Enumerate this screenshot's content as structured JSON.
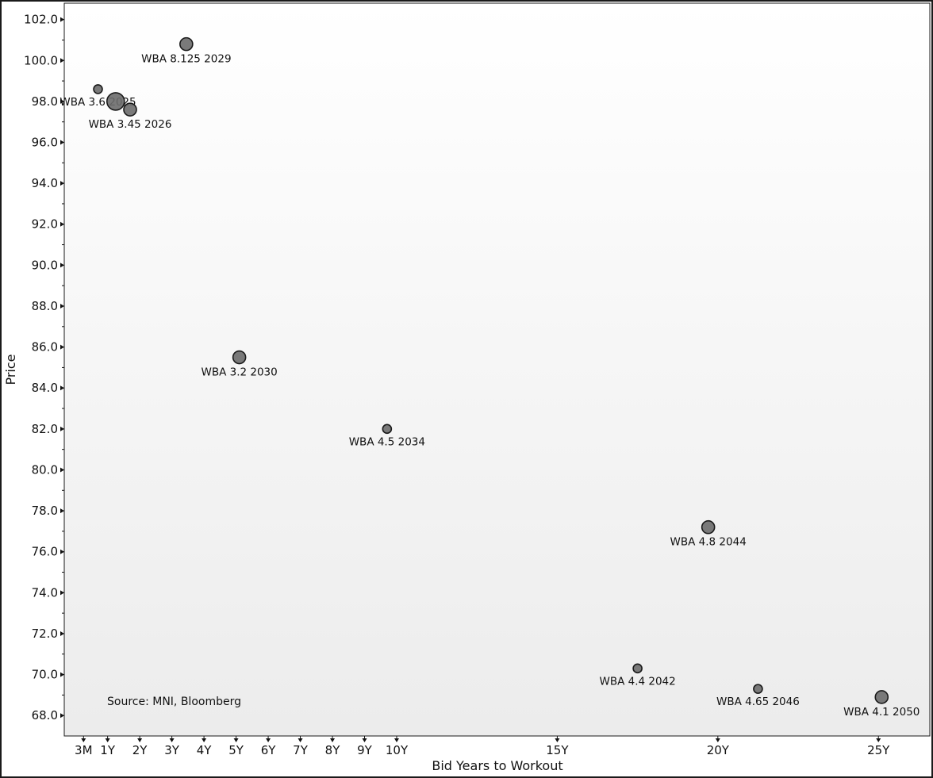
{
  "chart_data": {
    "type": "scatter",
    "title": "",
    "xlabel": "Bid Years to Workout",
    "ylabel": "Price",
    "source": "Source: MNI, Bloomberg",
    "xlim": [
      -0.35,
      26.6
    ],
    "ylim": [
      67.0,
      102.8
    ],
    "x_ticks": [
      {
        "value": 0.25,
        "label": "3M"
      },
      {
        "value": 1,
        "label": "1Y"
      },
      {
        "value": 2,
        "label": "2Y"
      },
      {
        "value": 3,
        "label": "3Y"
      },
      {
        "value": 4,
        "label": "4Y"
      },
      {
        "value": 5,
        "label": "5Y"
      },
      {
        "value": 6,
        "label": "6Y"
      },
      {
        "value": 7,
        "label": "7Y"
      },
      {
        "value": 8,
        "label": "8Y"
      },
      {
        "value": 9,
        "label": "9Y"
      },
      {
        "value": 10,
        "label": "10Y"
      },
      {
        "value": 15,
        "label": "15Y"
      },
      {
        "value": 20,
        "label": "20Y"
      },
      {
        "value": 25,
        "label": "25Y"
      }
    ],
    "y_ticks": [
      "68.0",
      "70.0",
      "72.0",
      "74.0",
      "76.0",
      "78.0",
      "80.0",
      "82.0",
      "84.0",
      "86.0",
      "88.0",
      "90.0",
      "92.0",
      "94.0",
      "96.0",
      "98.0",
      "100.0",
      "102.0"
    ],
    "grid": false,
    "marker_color": "#6b6b6b",
    "points": [
      {
        "label": "WBA 3.6 2025",
        "x": 0.7,
        "y": 98.6,
        "size": 1,
        "label_side": "below"
      },
      {
        "label": "",
        "x": 1.25,
        "y": 98.0,
        "size": 3
      },
      {
        "label": "WBA 3.45 2026",
        "x": 1.7,
        "y": 97.6,
        "size": 2,
        "label_side": "below"
      },
      {
        "label": "WBA 8.125 2029",
        "x": 3.45,
        "y": 100.8,
        "size": 2,
        "label_side": "below"
      },
      {
        "label": "WBA 3.2 2030",
        "x": 5.1,
        "y": 85.5,
        "size": 2,
        "label_side": "below"
      },
      {
        "label": "WBA 4.5 2034",
        "x": 9.7,
        "y": 82.0,
        "size": 1,
        "label_side": "below"
      },
      {
        "label": "WBA 4.4 2042",
        "x": 17.5,
        "y": 70.3,
        "size": 1,
        "label_side": "below"
      },
      {
        "label": "WBA 4.8 2044",
        "x": 19.7,
        "y": 77.2,
        "size": 2,
        "label_side": "below"
      },
      {
        "label": "WBA 4.65 2046",
        "x": 21.25,
        "y": 69.3,
        "size": 1,
        "label_side": "below"
      },
      {
        "label": "WBA 4.1 2050",
        "x": 25.1,
        "y": 68.9,
        "size": 2,
        "label_side": "below"
      }
    ]
  }
}
